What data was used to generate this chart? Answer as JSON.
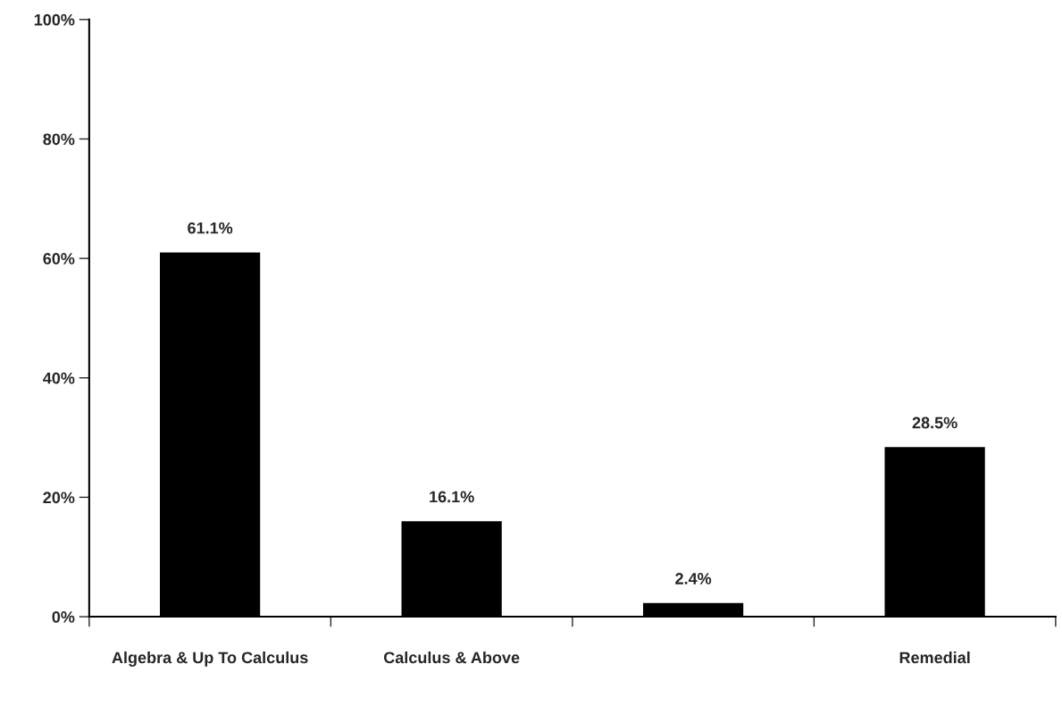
{
  "chart_data": {
    "type": "bar",
    "categories": [
      "Algebra & Up To Calculus",
      "Calculus & Above",
      null,
      "Remedial"
    ],
    "values": [
      61.1,
      16.1,
      2.4,
      28.5
    ],
    "value_labels": [
      "61.1%",
      "16.1%",
      "2.4%",
      "28.5%"
    ],
    "color": "#000000",
    "ylim": [
      0,
      100
    ],
    "yticks": [
      {
        "value": 0,
        "label": "0%"
      },
      {
        "value": 20,
        "label": "20%"
      },
      {
        "value": 40,
        "label": "40%"
      },
      {
        "value": 60,
        "label": "60%"
      },
      {
        "value": 80,
        "label": "80%"
      },
      {
        "value": 100,
        "label": "100%"
      }
    ],
    "grid": false,
    "legend": false
  }
}
